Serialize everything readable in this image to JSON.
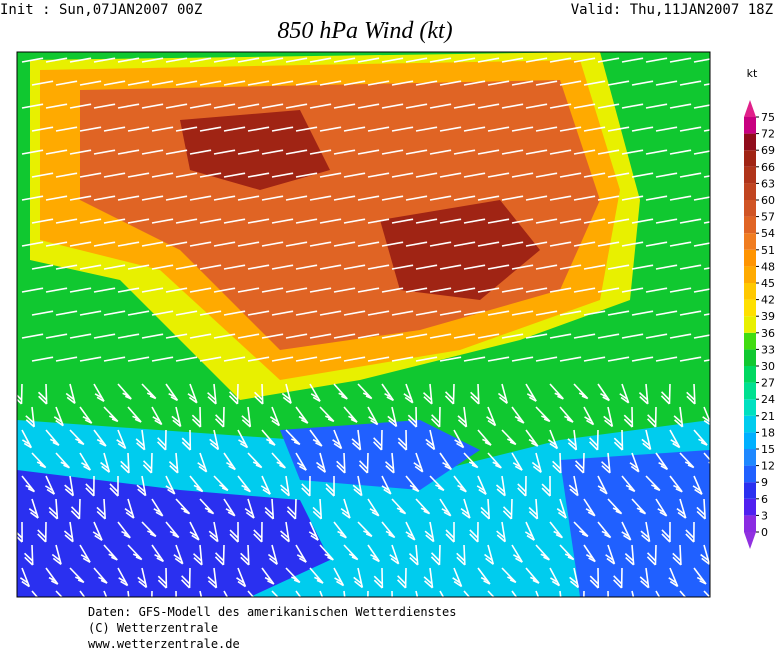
{
  "header": {
    "init": "Init : Sun,07JAN2007 00Z",
    "valid": "Valid: Thu,11JAN2007 18Z",
    "title": "850 hPa Wind (kt)"
  },
  "legend": {
    "unit": "kt",
    "ticks": [
      0,
      3,
      6,
      9,
      12,
      15,
      18,
      21,
      24,
      27,
      30,
      33,
      36,
      39,
      42,
      45,
      48,
      51,
      54,
      57,
      60,
      63,
      66,
      69,
      72,
      75
    ],
    "colors": [
      "#8a2be2",
      "#5020f0",
      "#2a30f0",
      "#2060ff",
      "#1e88ff",
      "#00b0ff",
      "#00ccee",
      "#00e0c0",
      "#00e090",
      "#00d860",
      "#10c830",
      "#40dc10",
      "#e8f000",
      "#ffe000",
      "#ffc800",
      "#ffaa00",
      "#ff9400",
      "#f07c20",
      "#e06424",
      "#d05424",
      "#c04420",
      "#b0341a",
      "#a02414",
      "#900c1c",
      "#c80080"
    ]
  },
  "footer": [
    "Daten: GFS-Modell des amerikanischen Wetterdienstes",
    "(C) Wetterzentrale",
    "www.wetterzentrale.de"
  ]
}
